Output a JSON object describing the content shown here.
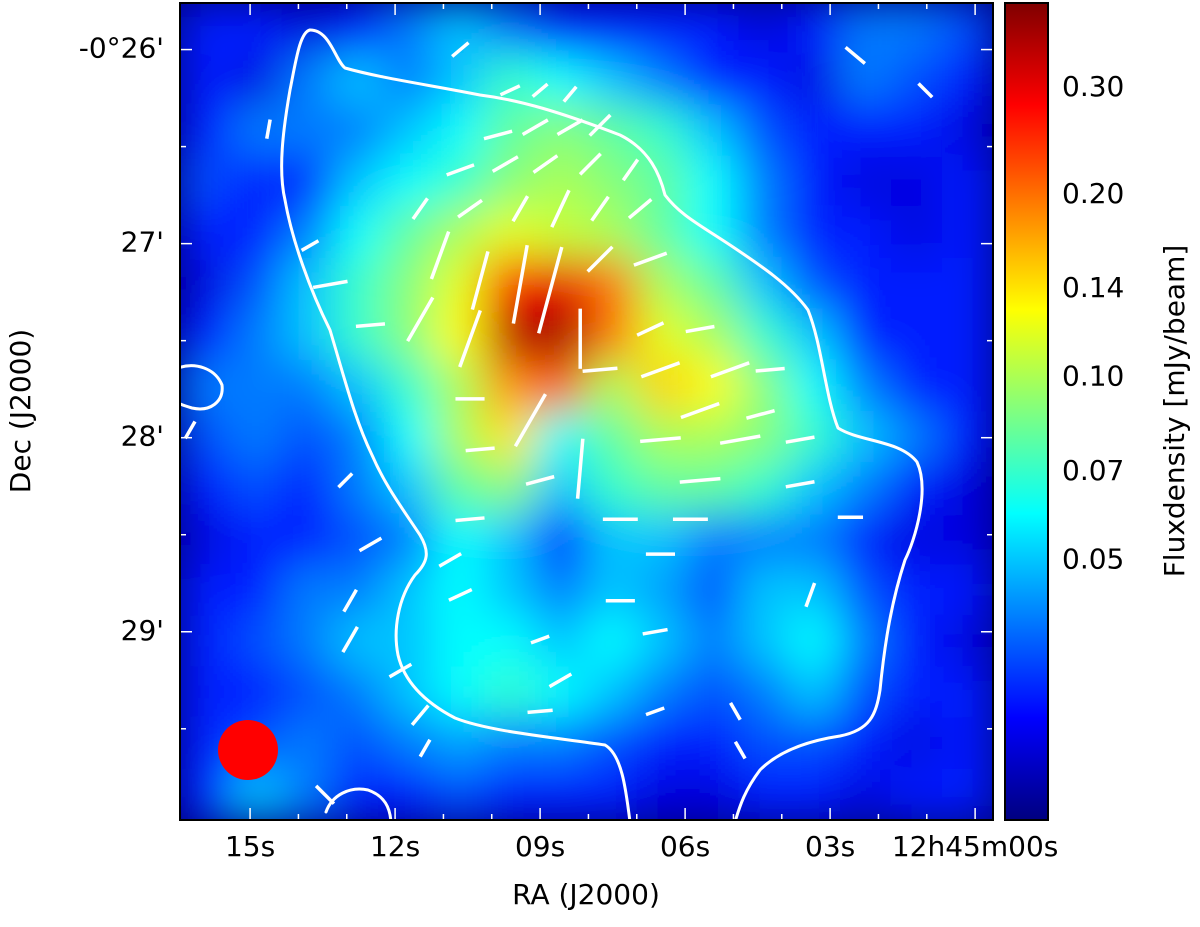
{
  "chart_data": {
    "type": "heatmap",
    "xlabel": "RA (J2000)",
    "ylabel": "Dec (J2000)",
    "xlim": [
      16.45,
      -0.37
    ],
    "ylim": [
      -29.97,
      -25.76
    ],
    "xticks": [
      {
        "value": 15,
        "label": "15s"
      },
      {
        "value": 12,
        "label": "12s"
      },
      {
        "value": 9,
        "label": "09s"
      },
      {
        "value": 6,
        "label": "06s"
      },
      {
        "value": 3,
        "label": "03s"
      },
      {
        "value": 0,
        "label": "12h45m00s"
      }
    ],
    "yticks": [
      {
        "value": -26,
        "label": "-0°26'"
      },
      {
        "value": -27,
        "label": "27'"
      },
      {
        "value": -28,
        "label": "28'"
      },
      {
        "value": -29,
        "label": "29'"
      }
    ],
    "xminorticks": [
      14,
      13,
      11,
      10,
      8,
      7,
      5,
      4,
      2,
      1
    ],
    "yminorticks": [
      -26.5,
      -27.5,
      -28.5,
      -29.5
    ],
    "colormap": "jet",
    "colorbar": {
      "label": "Fluxdensity [mJy/beam]",
      "lim": [
        0.0187,
        0.414
      ],
      "scale": "log",
      "ticks": [
        {
          "value": 0.3,
          "label": "0.30"
        },
        {
          "value": 0.2,
          "label": "0.20"
        },
        0.14,
        {
          "value": 0.1,
          "label": "0.10"
        },
        0.07,
        0.05
      ]
    },
    "z": [
      [
        0.03,
        0.03,
        0.025,
        0.03,
        0.04,
        0.05,
        0.04,
        0.03,
        0.03,
        0.03,
        0.03,
        0.025,
        0.03,
        0.04,
        0.04,
        0.035
      ],
      [
        0.03,
        0.025,
        0.04,
        0.05,
        0.04,
        0.05,
        0.07,
        0.06,
        0.05,
        0.04,
        0.03,
        0.03,
        0.025,
        0.04,
        0.035,
        0.03
      ],
      [
        0.03,
        0.04,
        0.04,
        0.04,
        0.05,
        0.06,
        0.08,
        0.09,
        0.08,
        0.07,
        0.05,
        0.035,
        0.03,
        0.03,
        0.03,
        0.025
      ],
      [
        0.035,
        0.03,
        0.03,
        0.05,
        0.06,
        0.07,
        0.09,
        0.1,
        0.09,
        0.08,
        0.06,
        0.04,
        0.03,
        0.025,
        0.025,
        0.03
      ],
      [
        0.03,
        0.03,
        0.04,
        0.06,
        0.08,
        0.1,
        0.12,
        0.11,
        0.1,
        0.08,
        0.06,
        0.04,
        0.03,
        0.03,
        0.025,
        0.03
      ],
      [
        0.025,
        0.035,
        0.05,
        0.07,
        0.09,
        0.12,
        0.25,
        0.3,
        0.2,
        0.1,
        0.08,
        0.05,
        0.035,
        0.03,
        0.03,
        0.03
      ],
      [
        0.03,
        0.04,
        0.05,
        0.07,
        0.09,
        0.13,
        0.35,
        0.38,
        0.2,
        0.12,
        0.1,
        0.07,
        0.05,
        0.03,
        0.03,
        0.03
      ],
      [
        0.04,
        0.04,
        0.04,
        0.05,
        0.07,
        0.1,
        0.18,
        0.22,
        0.1,
        0.15,
        0.13,
        0.09,
        0.06,
        0.04,
        0.03,
        0.03
      ],
      [
        0.035,
        0.04,
        0.035,
        0.04,
        0.06,
        0.1,
        0.14,
        0.06,
        0.08,
        0.1,
        0.1,
        0.09,
        0.07,
        0.05,
        0.04,
        0.03
      ],
      [
        0.03,
        0.035,
        0.03,
        0.04,
        0.05,
        0.08,
        0.09,
        0.05,
        0.07,
        0.08,
        0.08,
        0.07,
        0.05,
        0.04,
        0.03,
        0.025
      ],
      [
        0.025,
        0.03,
        0.03,
        0.035,
        0.04,
        0.06,
        0.05,
        0.03,
        0.05,
        0.05,
        0.04,
        0.04,
        0.04,
        0.03,
        0.025,
        0.025
      ],
      [
        0.03,
        0.03,
        0.04,
        0.04,
        0.05,
        0.06,
        0.05,
        0.04,
        0.05,
        0.045,
        0.035,
        0.05,
        0.05,
        0.035,
        0.03,
        0.03
      ],
      [
        0.03,
        0.035,
        0.04,
        0.05,
        0.05,
        0.06,
        0.06,
        0.05,
        0.06,
        0.05,
        0.04,
        0.05,
        0.06,
        0.04,
        0.03,
        0.025
      ],
      [
        0.03,
        0.03,
        0.035,
        0.04,
        0.05,
        0.06,
        0.07,
        0.06,
        0.05,
        0.04,
        0.035,
        0.04,
        0.05,
        0.035,
        0.03,
        0.03
      ],
      [
        0.03,
        0.035,
        0.04,
        0.035,
        0.04,
        0.045,
        0.04,
        0.04,
        0.035,
        0.03,
        0.03,
        0.035,
        0.035,
        0.03,
        0.025,
        0.03
      ],
      [
        0.03,
        0.05,
        0.04,
        0.03,
        0.03,
        0.035,
        0.03,
        0.03,
        0.03,
        0.025,
        0.025,
        0.03,
        0.03,
        0.025,
        0.03,
        0.03
      ]
    ],
    "vectors": {
      "color": "#ffffff",
      "x": [
        10.65,
        9.62,
        9.0,
        8.38,
        9.87,
        9.1,
        8.38,
        7.76,
        10.65,
        9.72,
        8.89,
        7.96,
        7.13,
        11.48,
        10.45,
        9.41,
        8.58,
        7.76,
        6.93,
        13.76,
        11.07,
        10.24,
        9.41,
        8.79,
        7.76,
        6.72,
        13.34,
        12.51,
        11.48,
        10.45,
        8.17,
        6.72,
        5.69,
        7.76,
        6.51,
        5.07,
        4.24,
        10.45,
        9.2,
        5.69,
        4.44,
        10.24,
        8.17,
        6.51,
        4.86,
        3.62,
        9.0,
        5.69,
        3.62,
        10.45,
        7.34,
        5.89,
        2.58,
        12.51,
        10.86,
        6.51,
        12.93,
        10.65,
        7.34,
        3.41,
        12.93,
        9.0,
        6.62,
        11.89,
        8.58,
        11.48,
        9.0,
        6.62,
        4.96,
        11.38,
        4.86,
        13.45,
        2.48,
        1.03,
        14.62,
        16.24,
        13.03
      ],
      "y": [
        -26.0,
        -26.21,
        -26.21,
        -26.23,
        -26.44,
        -26.4,
        -26.4,
        -26.39,
        -26.62,
        -26.59,
        -26.59,
        -26.59,
        -26.62,
        -26.82,
        -26.82,
        -26.82,
        -26.82,
        -26.82,
        -26.82,
        -27.01,
        -27.06,
        -27.19,
        -27.21,
        -27.24,
        -27.08,
        -27.08,
        -27.21,
        -27.42,
        -27.39,
        -27.49,
        -27.49,
        -27.44,
        -27.44,
        -27.65,
        -27.65,
        -27.65,
        -27.65,
        -27.8,
        -27.91,
        -27.86,
        -27.88,
        -28.06,
        -28.16,
        -28.01,
        -28.01,
        -28.01,
        -28.22,
        -28.22,
        -28.24,
        -28.42,
        -28.42,
        -28.42,
        -28.41,
        -28.55,
        -28.63,
        -28.6,
        -28.84,
        -28.81,
        -28.84,
        -28.81,
        -29.04,
        -29.04,
        -29.0,
        -29.2,
        -29.25,
        -29.43,
        -29.41,
        -29.41,
        -29.41,
        -29.6,
        -29.61,
        -29.84,
        -26.03,
        -26.21,
        -26.41,
        -27.96,
        -28.22
      ],
      "angle": [
        40,
        25,
        40,
        50,
        15,
        30,
        30,
        45,
        20,
        30,
        35,
        45,
        55,
        55,
        35,
        60,
        65,
        55,
        40,
        30,
        70,
        75,
        80,
        75,
        45,
        20,
        10,
        5,
        60,
        70,
        90,
        25,
        10,
        5,
        20,
        20,
        5,
        0,
        60,
        20,
        15,
        5,
        85,
        5,
        10,
        10,
        15,
        5,
        10,
        5,
        0,
        0,
        0,
        30,
        30,
        0,
        60,
        25,
        0,
        70,
        60,
        20,
        10,
        30,
        30,
        50,
        5,
        20,
        -60,
        60,
        -60,
        -45,
        -40,
        -45,
        80,
        60,
        45
      ],
      "length": [
        0.11,
        0.11,
        0.1,
        0.1,
        0.15,
        0.15,
        0.15,
        0.15,
        0.15,
        0.15,
        0.15,
        0.15,
        0.13,
        0.13,
        0.15,
        0.15,
        0.21,
        0.15,
        0.15,
        0.1,
        0.26,
        0.31,
        0.41,
        0.46,
        0.18,
        0.18,
        0.18,
        0.15,
        0.26,
        0.31,
        0.31,
        0.15,
        0.15,
        0.18,
        0.21,
        0.21,
        0.15,
        0.15,
        0.31,
        0.21,
        0.15,
        0.15,
        0.31,
        0.21,
        0.21,
        0.15,
        0.15,
        0.21,
        0.15,
        0.15,
        0.18,
        0.18,
        0.13,
        0.13,
        0.13,
        0.15,
        0.13,
        0.13,
        0.15,
        0.13,
        0.15,
        0.1,
        0.13,
        0.13,
        0.13,
        0.13,
        0.13,
        0.1,
        0.1,
        0.1,
        0.1,
        0.13,
        0.13,
        0.1,
        0.1,
        0.1,
        0.1
      ]
    }
  }
}
